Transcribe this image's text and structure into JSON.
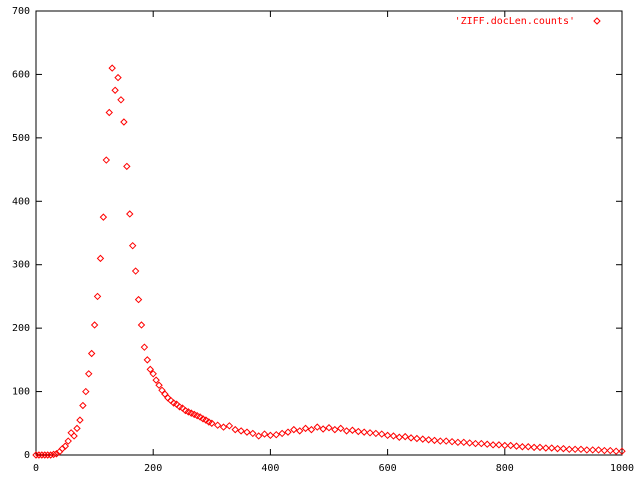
{
  "chart_data": {
    "type": "scatter",
    "series": [
      {
        "name": "'ZIFF.docLen.counts'",
        "color": "#ff0000",
        "x": [
          0,
          5,
          10,
          15,
          20,
          25,
          30,
          35,
          40,
          45,
          50,
          55,
          60,
          65,
          70,
          75,
          80,
          85,
          90,
          95,
          100,
          105,
          110,
          115,
          120,
          125,
          130,
          135,
          140,
          145,
          150,
          155,
          160,
          165,
          170,
          175,
          180,
          185,
          190,
          195,
          200,
          205,
          210,
          215,
          220,
          225,
          230,
          235,
          240,
          245,
          250,
          255,
          260,
          265,
          270,
          275,
          280,
          285,
          290,
          295,
          300,
          310,
          320,
          330,
          340,
          350,
          360,
          370,
          380,
          390,
          400,
          410,
          420,
          430,
          440,
          450,
          460,
          470,
          480,
          490,
          500,
          510,
          520,
          530,
          540,
          550,
          560,
          570,
          580,
          590,
          600,
          610,
          620,
          630,
          640,
          650,
          660,
          670,
          680,
          690,
          700,
          710,
          720,
          730,
          740,
          750,
          760,
          770,
          780,
          790,
          800,
          810,
          820,
          830,
          840,
          850,
          860,
          870,
          880,
          890,
          900,
          910,
          920,
          930,
          940,
          950,
          960,
          970,
          980,
          990,
          1000
        ],
        "values": [
          0,
          0,
          0,
          0,
          0,
          0,
          1,
          2,
          5,
          10,
          14,
          22,
          35,
          30,
          42,
          55,
          78,
          100,
          128,
          160,
          205,
          250,
          310,
          375,
          465,
          540,
          610,
          575,
          595,
          560,
          525,
          455,
          380,
          330,
          290,
          245,
          205,
          170,
          150,
          135,
          128,
          118,
          110,
          102,
          96,
          90,
          86,
          82,
          80,
          76,
          74,
          70,
          68,
          66,
          64,
          62,
          60,
          57,
          55,
          52,
          50,
          47,
          44,
          46,
          40,
          38,
          36,
          34,
          30,
          33,
          31,
          32,
          34,
          36,
          40,
          38,
          42,
          40,
          44,
          41,
          43,
          40,
          42,
          38,
          39,
          37,
          36,
          35,
          34,
          33,
          31,
          30,
          28,
          29,
          27,
          26,
          25,
          24,
          23,
          22,
          22,
          21,
          20,
          20,
          19,
          18,
          18,
          17,
          16,
          16,
          15,
          15,
          14,
          13,
          13,
          12,
          12,
          11,
          11,
          10,
          10,
          9,
          9,
          9,
          8,
          8,
          8,
          7,
          7,
          6,
          6
        ]
      }
    ],
    "xlim": [
      0,
      1000
    ],
    "xticks": [
      0,
      200,
      400,
      600,
      800,
      1000
    ],
    "ylim": [
      0,
      700
    ],
    "yticks": [
      0,
      100,
      200,
      300,
      400,
      500,
      600,
      700
    ],
    "legend": "top-right"
  }
}
